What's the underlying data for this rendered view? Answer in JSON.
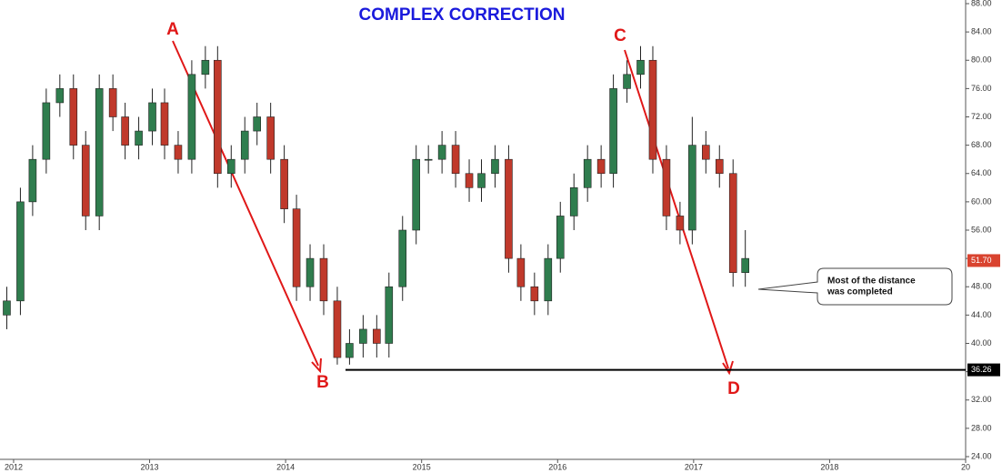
{
  "chart_data": {
    "type": "candlestick",
    "title": "COMPLEX CORRECTION",
    "x": [
      2011.95,
      2012.05,
      2012.14,
      2012.24,
      2012.34,
      2012.44,
      2012.53,
      2012.63,
      2012.73,
      2012.82,
      2012.92,
      2013.02,
      2013.11,
      2013.21,
      2013.31,
      2013.41,
      2013.5,
      2013.6,
      2013.7,
      2013.79,
      2013.89,
      2013.99,
      2014.08,
      2014.18,
      2014.28,
      2014.38,
      2014.47,
      2014.57,
      2014.67,
      2014.76,
      2014.86,
      2014.96,
      2015.05,
      2015.15,
      2015.25,
      2015.35,
      2015.44,
      2015.54,
      2015.64,
      2015.73,
      2015.83,
      2015.93,
      2016.02,
      2016.12,
      2016.22,
      2016.32,
      2016.41,
      2016.51,
      2016.61,
      2016.7,
      2016.8,
      2016.9,
      2016.99,
      2017.09,
      2017.19,
      2017.29,
      2017.38
    ],
    "open": [
      44,
      46,
      60,
      66,
      74,
      76,
      68,
      58,
      76,
      72,
      68,
      70,
      74,
      68,
      66,
      78,
      80,
      64,
      66,
      70,
      72,
      66,
      59,
      48,
      52,
      46,
      38,
      40,
      42,
      40,
      48,
      56,
      66,
      66,
      68,
      64,
      62,
      64,
      66,
      52,
      48,
      46,
      52,
      58,
      62,
      66,
      64,
      76,
      78,
      80,
      66,
      58,
      56,
      68,
      66,
      64,
      50
    ],
    "high": [
      48,
      62,
      68,
      76,
      78,
      78,
      70,
      78,
      78,
      74,
      72,
      76,
      76,
      70,
      80,
      82,
      82,
      68,
      72,
      74,
      74,
      68,
      61,
      54,
      54,
      48,
      42,
      44,
      44,
      50,
      58,
      68,
      68,
      70,
      70,
      66,
      66,
      68,
      68,
      54,
      50,
      54,
      60,
      64,
      68,
      68,
      78,
      80,
      82,
      82,
      68,
      60,
      72,
      70,
      68,
      66,
      56
    ],
    "low": [
      42,
      44,
      58,
      64,
      72,
      66,
      56,
      56,
      70,
      66,
      66,
      68,
      66,
      64,
      64,
      76,
      62,
      62,
      64,
      68,
      64,
      57,
      46,
      46,
      44,
      37,
      37,
      38,
      38,
      38,
      46,
      54,
      64,
      64,
      62,
      60,
      60,
      62,
      50,
      46,
      44,
      44,
      50,
      56,
      60,
      62,
      62,
      74,
      76,
      64,
      56,
      54,
      54,
      64,
      62,
      48,
      48
    ],
    "close": [
      46,
      60,
      66,
      74,
      76,
      68,
      58,
      76,
      72,
      68,
      70,
      74,
      68,
      66,
      78,
      80,
      64,
      66,
      70,
      72,
      66,
      59,
      48,
      52,
      46,
      38,
      40,
      42,
      40,
      48,
      56,
      66,
      66,
      68,
      64,
      62,
      64,
      66,
      52,
      48,
      46,
      52,
      58,
      62,
      66,
      64,
      76,
      78,
      80,
      66,
      58,
      56,
      68,
      66,
      64,
      50,
      52
    ],
    "up_color": "#2f7d4e",
    "down_color": "#c0392b",
    "xlim": [
      2011.9,
      2019
    ],
    "xticks": [
      2012,
      2013,
      2014,
      2015,
      2016,
      2017,
      2018,
      {
        "value": 2019,
        "label": "20"
      }
    ],
    "ylim": [
      24,
      88
    ],
    "yticks": [
      {
        "value": 24,
        "label": "24.00"
      },
      {
        "value": 28,
        "label": "28.00"
      },
      {
        "value": 32,
        "label": "32.00"
      },
      {
        "value": 36,
        "label": "36.00"
      },
      {
        "value": 40,
        "label": "40.00"
      },
      {
        "value": 44,
        "label": "44.00"
      },
      {
        "value": 48,
        "label": "48.00"
      },
      {
        "value": 52,
        "label": "52.00"
      },
      {
        "value": 56,
        "label": "56.00"
      },
      {
        "value": 60,
        "label": "60.00"
      },
      {
        "value": 64,
        "label": "64.00"
      },
      {
        "value": 68,
        "label": "68.00"
      },
      {
        "value": 72,
        "label": "72.00"
      },
      {
        "value": 76,
        "label": "76.00"
      },
      {
        "value": 80,
        "label": "80.00"
      },
      {
        "value": 84,
        "label": "84.00"
      },
      {
        "value": 88,
        "label": "88.00"
      }
    ],
    "level": {
      "value": 36.26,
      "label": "36.26"
    },
    "last_price": {
      "value": 51.7,
      "label": "51.70"
    },
    "wave_labels": [
      "A",
      "B",
      "C",
      "D"
    ],
    "callout": [
      "Most of the distance",
      "was completed"
    ]
  }
}
